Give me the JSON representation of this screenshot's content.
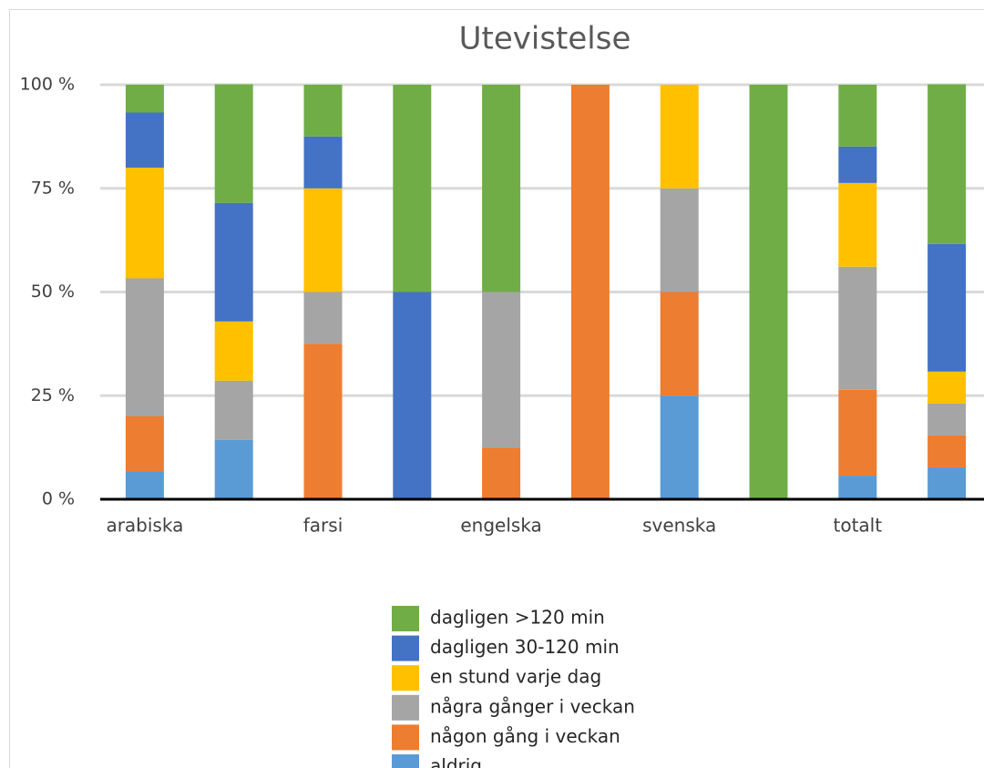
{
  "chart_data": {
    "type": "stacked_bar",
    "title": "Utevistelse",
    "categories": [
      "arabiska",
      null,
      "farsi",
      null,
      "engelska",
      null,
      "svenska",
      null,
      "totalt",
      null
    ],
    "series": [
      {
        "name": "aldrig",
        "color": "#5b9bd5",
        "values": [
          6.7,
          14.3,
          0,
          0,
          0,
          0,
          25,
          0,
          5.7,
          7.7
        ]
      },
      {
        "name": "någon gång i veckan",
        "color": "#ed7d31",
        "values": [
          13.3,
          0,
          37.5,
          0,
          12.5,
          100,
          25,
          0,
          20.7,
          7.7
        ]
      },
      {
        "name": "några gånger i veckan",
        "color": "#a5a5a5",
        "values": [
          33.3,
          14.3,
          12.5,
          0,
          37.5,
          0,
          25,
          0,
          29.7,
          7.7
        ]
      },
      {
        "name": "en stund varje dag",
        "color": "#ffc000",
        "values": [
          26.7,
          14.3,
          25,
          0,
          0,
          0,
          25,
          0,
          20.2,
          7.7
        ]
      },
      {
        "name": "dagligen 30-120 min",
        "color": "#4472c4",
        "values": [
          13.3,
          28.6,
          12.5,
          50,
          0,
          0,
          0,
          0,
          8.8,
          30.8
        ]
      },
      {
        "name": "dagligen >120 min",
        "color": "#70ad47",
        "values": [
          6.7,
          28.6,
          12.5,
          50,
          50,
          0,
          0,
          100,
          14.9,
          38.5
        ]
      }
    ],
    "ylim": [
      0,
      100
    ],
    "yticks": [
      {
        "value": 0,
        "label": "0 %"
      },
      {
        "value": 25,
        "label": "25 %"
      },
      {
        "value": 50,
        "label": "50 %"
      },
      {
        "value": 75,
        "label": "75 %"
      },
      {
        "value": 100,
        "label": "100 %"
      }
    ],
    "grid": true,
    "legend": "bottom"
  }
}
